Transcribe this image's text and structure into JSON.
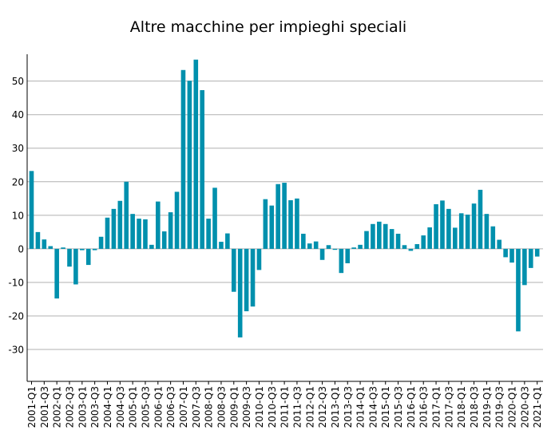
{
  "chart_data": {
    "type": "bar",
    "title": "Altre macchine per impieghi speciali",
    "xlabel": "",
    "ylabel": "",
    "ylim": [
      -39.5,
      58
    ],
    "yticks": [
      -30,
      -20,
      -10,
      0,
      10,
      20,
      30,
      40,
      50
    ],
    "grid": true,
    "bar_color": "#0090ad",
    "x_tick_labels": [
      "2001-Q1",
      "2001-Q3",
      "2002-Q1",
      "2002-Q3",
      "2003-Q1",
      "2003-Q3",
      "2004-Q1",
      "2004-Q3",
      "2005-Q1",
      "2005-Q3",
      "2006-Q1",
      "2006-Q3",
      "2007-Q1",
      "2007-Q3",
      "2008-Q1",
      "2008-Q3",
      "2009-Q1",
      "2009-Q3",
      "2010-Q1",
      "2010-Q3",
      "2011-Q1",
      "2011-Q3",
      "2012-Q1",
      "2012-Q3",
      "2013-Q1",
      "2013-Q3",
      "2014-Q1",
      "2014-Q3",
      "2015-Q1",
      "2015-Q3",
      "2016-Q1",
      "2016-Q3",
      "2017-Q1",
      "2017-Q3",
      "2018-Q1",
      "2018-Q3",
      "2019-Q1",
      "2019-Q3",
      "2020-Q1",
      "2020-Q3",
      "2021-Q1"
    ],
    "categories": [
      "2001-Q1",
      "2001-Q2",
      "2001-Q3",
      "2001-Q4",
      "2002-Q1",
      "2002-Q2",
      "2002-Q3",
      "2002-Q4",
      "2003-Q1",
      "2003-Q2",
      "2003-Q3",
      "2003-Q4",
      "2004-Q1",
      "2004-Q2",
      "2004-Q3",
      "2004-Q4",
      "2005-Q1",
      "2005-Q2",
      "2005-Q3",
      "2005-Q4",
      "2006-Q1",
      "2006-Q2",
      "2006-Q3",
      "2006-Q4",
      "2007-Q1",
      "2007-Q2",
      "2007-Q3",
      "2007-Q4",
      "2008-Q1",
      "2008-Q2",
      "2008-Q3",
      "2008-Q4",
      "2009-Q1",
      "2009-Q2",
      "2009-Q3",
      "2009-Q4",
      "2010-Q1",
      "2010-Q2",
      "2010-Q3",
      "2010-Q4",
      "2011-Q1",
      "2011-Q2",
      "2011-Q3",
      "2011-Q4",
      "2012-Q1",
      "2012-Q2",
      "2012-Q3",
      "2012-Q4",
      "2013-Q1",
      "2013-Q2",
      "2013-Q3",
      "2013-Q4",
      "2014-Q1",
      "2014-Q2",
      "2014-Q3",
      "2014-Q4",
      "2015-Q1",
      "2015-Q2",
      "2015-Q3",
      "2015-Q4",
      "2016-Q1",
      "2016-Q2",
      "2016-Q3",
      "2016-Q4",
      "2017-Q1",
      "2017-Q2",
      "2017-Q3",
      "2017-Q4",
      "2018-Q1",
      "2018-Q2",
      "2018-Q3",
      "2018-Q4",
      "2019-Q1",
      "2019-Q2",
      "2019-Q3",
      "2019-Q4",
      "2020-Q1",
      "2020-Q2",
      "2020-Q3",
      "2020-Q4",
      "2021-Q1"
    ],
    "values": [
      23.2,
      5.0,
      2.8,
      0.8,
      -14.8,
      0.4,
      -5.3,
      -10.6,
      -0.4,
      -4.8,
      -0.4,
      3.6,
      9.3,
      11.9,
      14.3,
      20.0,
      10.4,
      9.0,
      8.8,
      1.2,
      14.1,
      5.2,
      10.9,
      17.0,
      53.3,
      50.1,
      56.4,
      47.3,
      9.0,
      18.2,
      2.1,
      4.6,
      -12.8,
      -26.4,
      -18.6,
      -17.2,
      -6.3,
      14.8,
      12.9,
      19.3,
      19.7,
      14.5,
      15.0,
      4.5,
      1.6,
      2.2,
      -3.3,
      1.1,
      -0.3,
      -7.2,
      -4.3,
      0.4,
      1.2,
      5.3,
      7.4,
      8.1,
      7.4,
      5.9,
      4.5,
      1.1,
      -0.6,
      1.4,
      4.0,
      6.4,
      13.3,
      14.4,
      11.9,
      6.3,
      10.6,
      10.2,
      13.5,
      17.6,
      10.4,
      6.7,
      2.7,
      -2.5,
      -4.1,
      -24.6,
      -10.8,
      -5.7,
      -2.3
    ]
  }
}
